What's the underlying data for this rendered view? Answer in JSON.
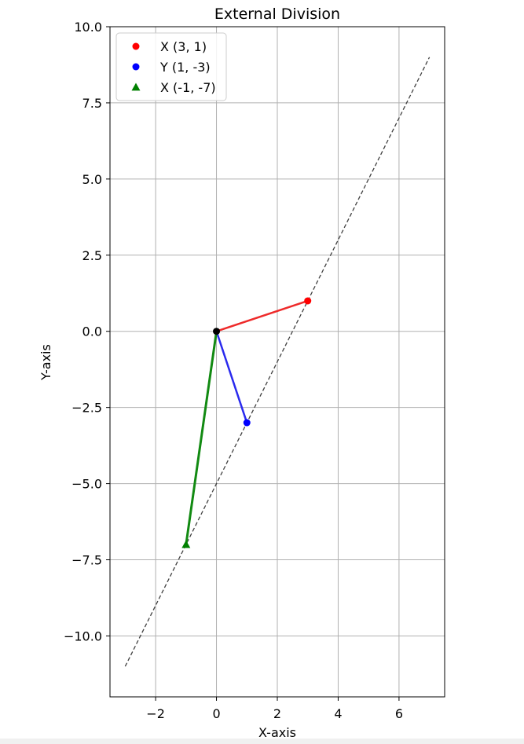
{
  "chart_data": {
    "type": "scatter",
    "title": "External Division",
    "xlabel": "X-axis",
    "ylabel": "Y-axis",
    "xlim": [
      -3.5,
      7.5
    ],
    "ylim": [
      -12,
      10
    ],
    "grid": true,
    "legend_position": "upper-left",
    "x_ticks": [
      -2,
      0,
      2,
      4,
      6
    ],
    "x_tick_labels": [
      "−2",
      "0",
      "2",
      "4",
      "6"
    ],
    "y_ticks": [
      10,
      7.5,
      5,
      2.5,
      0,
      -2.5,
      -5,
      -7.5,
      -10
    ],
    "y_tick_labels": [
      "10.0",
      "7.5",
      "5.0",
      "2.5",
      "0.0",
      "−2.5",
      "−5.0",
      "−7.5",
      "−10.0"
    ],
    "origin": {
      "x": 0,
      "y": 0,
      "color": "#000000"
    },
    "series": [
      {
        "name": "X (3, 1)",
        "x": 3,
        "y": 1,
        "marker": "circle",
        "color": "#ff0000",
        "line_color": "#ee2a2a"
      },
      {
        "name": "Y (1, -3)",
        "x": 1,
        "y": -3,
        "marker": "circle",
        "color": "#0000ff",
        "line_color": "#2a2aee"
      },
      {
        "name": "X (-1, -7)",
        "x": -1,
        "y": -7,
        "marker": "triangle",
        "color": "#008000",
        "line_color": "#128a12"
      }
    ],
    "dashed_line": {
      "x": [
        -3,
        7
      ],
      "y": [
        -11,
        9
      ],
      "color": "#404040"
    }
  }
}
